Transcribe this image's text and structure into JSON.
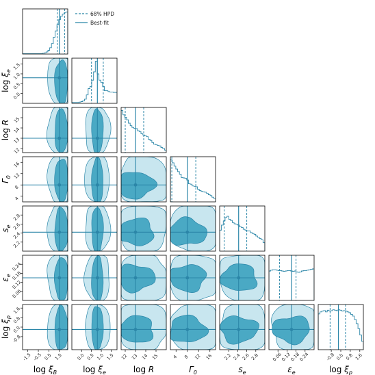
{
  "chart_data": {
    "type": "corner",
    "colors": {
      "line": "#2b86a8",
      "outer": "#c8e6ef",
      "inner": "#4aa9c4",
      "frame": "#000000"
    },
    "legend": [
      {
        "label": "68% HPD",
        "style": "dashed"
      },
      {
        "label": "Best-fit",
        "style": "solid"
      }
    ],
    "parameters": [
      {
        "label": "log ξ_B",
        "range": [
          -2.0,
          2.3
        ],
        "ticks": [
          -1.5,
          -0.5,
          0.5,
          1.5
        ],
        "tick_labels": [
          "-1.5",
          "-0.5",
          "0.5",
          "1.5"
        ],
        "best_fit": 1.5,
        "hpd": [
          1.3,
          2.0
        ]
      },
      {
        "label": "log ξ_e",
        "range": [
          -0.5,
          1.8
        ],
        "ticks": [
          0.0,
          0.5,
          1.0,
          1.5
        ],
        "tick_labels": [
          "0.0",
          "0.5",
          "1.0",
          "1.5"
        ],
        "best_fit": 0.8,
        "hpd": [
          0.5,
          1.1
        ]
      },
      {
        "label": "log R",
        "range": [
          11.6,
          16.0
        ],
        "ticks": [
          12,
          13,
          14,
          15
        ],
        "tick_labels": [
          "12",
          "13",
          "14",
          "15"
        ],
        "best_fit": 13.0,
        "hpd": [
          12.0,
          13.8
        ]
      },
      {
        "label": "Γ_0",
        "range": [
          2.0,
          18.0
        ],
        "ticks": [
          4,
          8,
          12,
          16
        ],
        "tick_labels": [
          "4",
          "8",
          "12",
          "16"
        ],
        "best_fit": 8.0,
        "hpd": [
          2.5,
          11.0
        ]
      },
      {
        "label": "s_e",
        "range": [
          2.0,
          3.0
        ],
        "ticks": [
          2.2,
          2.4,
          2.6,
          2.8
        ],
        "tick_labels": [
          "2.2",
          "2.4",
          "2.6",
          "2.8"
        ],
        "best_fit": 2.42,
        "hpd": [
          2.1,
          2.6
        ]
      },
      {
        "label": "ε_e",
        "range": [
          0.0,
          0.3
        ],
        "ticks": [
          0.06,
          0.12,
          0.18,
          0.24
        ],
        "tick_labels": [
          "0.06",
          "0.12",
          "0.18",
          "0.24"
        ],
        "best_fit": 0.15,
        "hpd": [
          0.07,
          0.18
        ]
      },
      {
        "label": "log ξ_p",
        "range": [
          -1.9,
          1.9
        ],
        "ticks": [
          -0.8,
          0.0,
          0.8,
          1.6
        ],
        "tick_labels": [
          "-0.8",
          "0.0",
          "0.8",
          "1.6"
        ],
        "best_fit": -0.2,
        "hpd": [
          -0.9,
          0.4
        ]
      }
    ],
    "marginals": [
      [
        0.01,
        0.01,
        0.01,
        0.01,
        0.01,
        0.01,
        0.01,
        0.01,
        0.01,
        0.01,
        0.01,
        0.02,
        0.03,
        0.05,
        0.09,
        0.15,
        0.25,
        0.4,
        0.55,
        0.7,
        0.82,
        0.9,
        0.95,
        0.98,
        1.0
      ],
      [
        0.02,
        0.02,
        0.02,
        0.02,
        0.03,
        0.04,
        0.06,
        0.1,
        0.2,
        0.35,
        0.4,
        0.55,
        0.75,
        1.0,
        0.7,
        0.55,
        0.5,
        0.4,
        0.3,
        0.3,
        0.28,
        0.27,
        0.27,
        0.26,
        0.26
      ],
      [
        1.0,
        0.9,
        0.84,
        0.78,
        0.7,
        0.64,
        0.6,
        0.58,
        0.57,
        0.52,
        0.5,
        0.45,
        0.42,
        0.4,
        0.38,
        0.32,
        0.29,
        0.24,
        0.2,
        0.19,
        0.17,
        0.16,
        0.12,
        0.1,
        0.06
      ],
      [
        1.0,
        0.93,
        0.85,
        0.78,
        0.72,
        0.66,
        0.58,
        0.57,
        0.56,
        0.52,
        0.43,
        0.42,
        0.38,
        0.37,
        0.36,
        0.3,
        0.27,
        0.25,
        0.24,
        0.23,
        0.2,
        0.17,
        0.15,
        0.11,
        0.08
      ],
      [
        0.5,
        0.62,
        0.72,
        0.8,
        0.83,
        0.76,
        0.73,
        0.68,
        0.65,
        0.64,
        0.62,
        0.58,
        0.56,
        0.52,
        0.5,
        0.48,
        0.48,
        0.44,
        0.42,
        0.4,
        0.36,
        0.33,
        0.3,
        0.27,
        0.2
      ],
      [
        0.7,
        0.72,
        0.73,
        0.73,
        0.72,
        0.71,
        0.71,
        0.7,
        0.69,
        0.7,
        0.71,
        0.71,
        0.7,
        0.69,
        0.7,
        0.68,
        0.67,
        0.68,
        0.7,
        0.71,
        0.71,
        0.72,
        0.73,
        0.74,
        0.75
      ],
      [
        0.85,
        0.9,
        0.92,
        0.93,
        0.9,
        0.94,
        0.92,
        0.93,
        0.95,
        0.94,
        0.93,
        0.95,
        0.94,
        0.92,
        0.93,
        0.92,
        0.9,
        0.88,
        0.84,
        0.8,
        0.72,
        0.62,
        0.5,
        0.35,
        0.2
      ]
    ]
  }
}
